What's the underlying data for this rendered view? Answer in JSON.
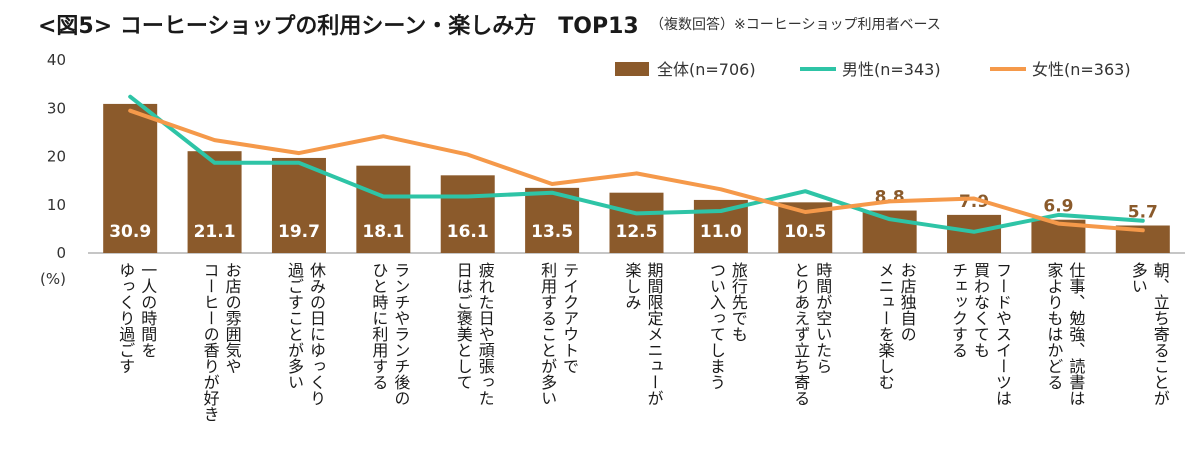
{
  "title": "<図5> コーヒーショップの利用シーン・楽しみ方　TOP13",
  "subtitle": "（複数回答）※コーヒーショップ利用者ベース",
  "chart_data": {
    "type": "bar",
    "ylim": [
      0,
      40
    ],
    "yticks": [
      "0",
      "10",
      "20",
      "30",
      "40"
    ],
    "ylabel": "(%)",
    "legend_position": "top-right",
    "categories": [
      "一人の時間を\nゆっくり過ごす",
      "お店の雰囲気や\nコーヒーの香りが好き",
      "休みの日にゆっくり\n過ごすことが多い",
      "ランチやランチ後の\nひと時に利用する",
      "疲れた日や頑張った\n日はご褒美として",
      "テイクアウトで\n利用することが多い",
      "期間限定メニューが\n楽しみ",
      "旅行先でも\nつい入ってしまう",
      "時間が空いたら\nとりあえず立ち寄る",
      "お店独自の\nメニューを楽しむ",
      "フードやスイーツは\n買わなくても\nチェックする",
      "仕事、勉強、読書は\n家よりもはかどる",
      "朝、立ち寄ることが\n多い"
    ],
    "series": [
      {
        "name": "全体(n=706)",
        "type": "bar",
        "color": "#8b5a2b",
        "values": [
          30.9,
          21.1,
          19.7,
          18.1,
          16.1,
          13.5,
          12.5,
          11.0,
          10.5,
          8.8,
          7.9,
          6.9,
          5.7
        ],
        "labels": [
          "30.9",
          "21.1",
          "19.7",
          "18.1",
          "16.1",
          "13.5",
          "12.5",
          "11.0",
          "10.5",
          "8.8",
          "7.9",
          "6.9",
          "5.7"
        ]
      },
      {
        "name": "男性(n=343)",
        "type": "line",
        "color": "#2ec4a6",
        "values": [
          32.4,
          18.7,
          18.7,
          11.7,
          11.7,
          12.5,
          8.2,
          8.7,
          12.8,
          7.0,
          4.4,
          7.9,
          6.7
        ]
      },
      {
        "name": "女性(n=363)",
        "type": "line",
        "color": "#f5994a",
        "values": [
          29.5,
          23.4,
          20.7,
          24.2,
          20.4,
          14.3,
          16.5,
          13.2,
          8.5,
          10.7,
          11.3,
          6.1,
          4.7
        ]
      }
    ]
  }
}
